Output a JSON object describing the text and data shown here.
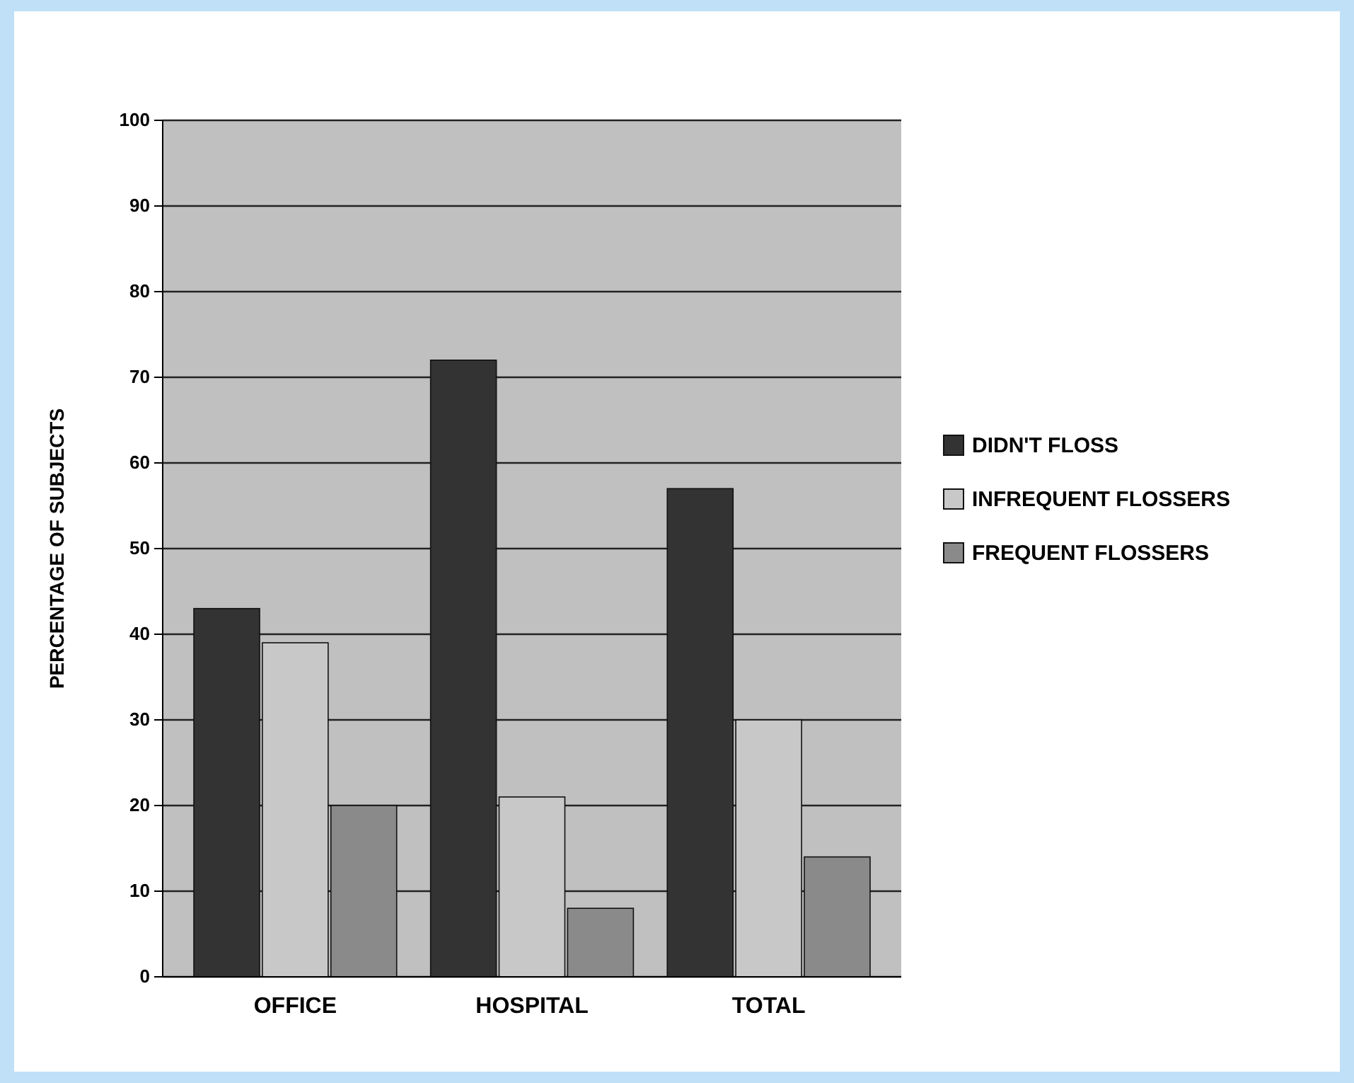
{
  "chart_data": {
    "type": "bar",
    "ylabel": "PERCENTAGE OF SUBJECTS",
    "categories": [
      "OFFICE",
      "HOSPITAL",
      "TOTAL"
    ],
    "series": [
      {
        "name": "DIDN'T FLOSS",
        "color": "#333333",
        "values": [
          43,
          72,
          57
        ]
      },
      {
        "name": "INFREQUENT FLOSSERS",
        "color": "#c8c8c8",
        "values": [
          39,
          21,
          30
        ]
      },
      {
        "name": "FREQUENT FLOSSERS",
        "color": "#8a8a8a",
        "values": [
          20,
          8,
          14
        ]
      }
    ],
    "ylim": [
      0,
      100
    ],
    "yticks": [
      0,
      10,
      20,
      30,
      40,
      50,
      60,
      70,
      80,
      90,
      100
    ],
    "grid": "y",
    "legend": "right"
  }
}
